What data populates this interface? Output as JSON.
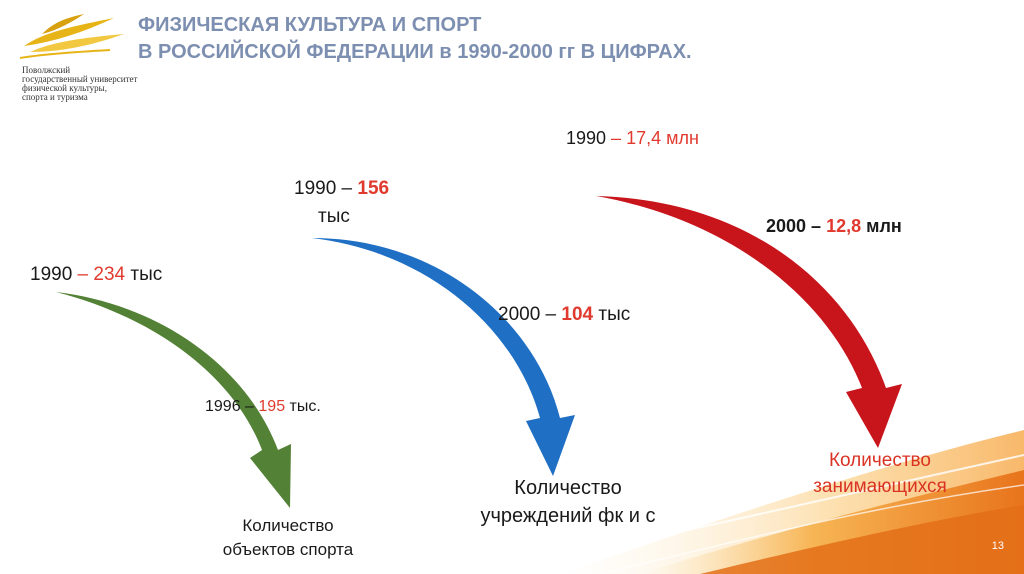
{
  "title": {
    "line1": "ФИЗИЧЕСКАЯ КУЛЬТУРА И СПОРТ",
    "line2": "В РОССИЙСКОЙ ФЕДЕРАЦИИ в 1990-2000 гг В ЦИФРАХ."
  },
  "logo": {
    "text": "Поволжский\nгосударственный университет\nфизической культуры,\nспорта и туризма"
  },
  "green": {
    "color": "#538135",
    "start_year": "1990",
    "start_value": "234",
    "start_unit": "тыс",
    "mid_year": "1996",
    "mid_value": "195",
    "mid_unit": "тыс.",
    "category_line1": "Количество",
    "category_line2": "объектов спорта"
  },
  "blue": {
    "color": "#1f6fc5",
    "start_year": "1990",
    "start_value": "156",
    "start_unit": "тыс",
    "mid_year": "2000",
    "mid_value": "104",
    "mid_unit": "тыс",
    "category_line1": "Количество",
    "category_line2": "учреждений фк и с"
  },
  "red": {
    "color": "#c8151b",
    "start_year": "1990",
    "start_value": "17,4",
    "start_unit": "млн",
    "mid_year": "2000",
    "mid_value": "12,8",
    "mid_unit": "млн",
    "category_line1": "Количество",
    "category_line2": "занимающихся"
  },
  "dash": " – ",
  "page_number": "13"
}
